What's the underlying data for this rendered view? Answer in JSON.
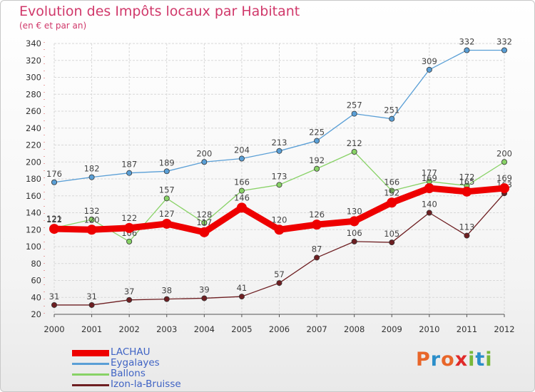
{
  "title": "Evolution des Impôts locaux par Habitant",
  "subtitle": "(en € et par an)",
  "logo": {
    "text": "Proxiti",
    "colors": [
      "#e8662a",
      "#2b8ec9",
      "#e8662a",
      "#e02a2a",
      "#78b83a",
      "#2b8ec9",
      "#78b83a"
    ]
  },
  "colors": {
    "title": "#d0386a",
    "legend_text": "#3f63c4",
    "axis_text": "#333333",
    "grid": "#d8d8d8"
  },
  "chart_data": {
    "type": "line",
    "title": "Evolution des Impôts locaux par Habitant",
    "subtitle": "(en € et par an)",
    "xlabel": "",
    "ylabel": "",
    "categories": [
      "2000",
      "2001",
      "2002",
      "2003",
      "2004",
      "2005",
      "2006",
      "2007",
      "2008",
      "2009",
      "2010",
      "2011",
      "2012"
    ],
    "ylim": [
      20,
      340
    ],
    "yticks": [
      20,
      40,
      60,
      80,
      100,
      120,
      140,
      160,
      180,
      200,
      220,
      240,
      260,
      280,
      300,
      320,
      340
    ],
    "grid": true,
    "legend_position": "bottom-left",
    "series": [
      {
        "name": "LACHAU",
        "color": "#ee0000",
        "values": [
          121,
          120,
          122,
          127,
          117,
          146,
          120,
          126,
          130,
          152,
          169,
          165,
          169
        ],
        "labels": [
          "121",
          "120",
          "122",
          "127",
          "117",
          "146",
          "120",
          "126",
          "130",
          "152",
          "169",
          "165",
          "169"
        ],
        "emphasis": true
      },
      {
        "name": "Eygalayes",
        "color": "#5a9fd6",
        "values": [
          176,
          182,
          187,
          189,
          200,
          204,
          213,
          225,
          257,
          251,
          309,
          332,
          332
        ],
        "labels": [
          "176",
          "182",
          "187",
          "189",
          "200",
          "204",
          "213",
          "225",
          "257",
          "251",
          "309",
          "332",
          "332"
        ]
      },
      {
        "name": "Ballons",
        "color": "#88d266",
        "values": [
          122,
          132,
          106,
          157,
          128,
          166,
          173,
          192,
          212,
          166,
          177,
          172,
          200
        ],
        "labels": [
          "122",
          "132",
          "106",
          "157",
          "128",
          "166",
          "173",
          "192",
          "212",
          "166",
          "177",
          "172",
          "200"
        ]
      },
      {
        "name": "Izon-la-Bruisse",
        "color": "#6e1f22",
        "values": [
          31,
          31,
          37,
          38,
          39,
          41,
          57,
          87,
          106,
          105,
          140,
          113,
          163
        ],
        "labels": [
          "31",
          "31",
          "37",
          "38",
          "39",
          "41",
          "57",
          "87",
          "106",
          "105",
          "140",
          "113",
          "163"
        ]
      }
    ]
  }
}
